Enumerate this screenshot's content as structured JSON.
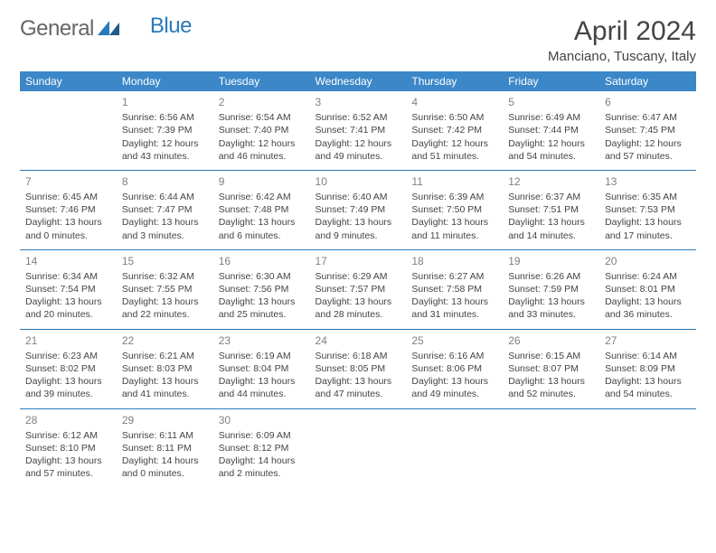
{
  "logo": {
    "text_general": "General",
    "text_blue": "Blue"
  },
  "header": {
    "month": "April 2024",
    "location": "Manciano, Tuscany, Italy"
  },
  "colors": {
    "header_bg": "#3b87c8",
    "header_text": "#ffffff",
    "border": "#2a7ab9",
    "body_text": "#444444",
    "daynum": "#808080",
    "logo_gray": "#666666",
    "logo_blue": "#2a7ab9"
  },
  "weekdays": [
    "Sunday",
    "Monday",
    "Tuesday",
    "Wednesday",
    "Thursday",
    "Friday",
    "Saturday"
  ],
  "weeks": [
    [
      null,
      {
        "n": "1",
        "sr": "6:56 AM",
        "ss": "7:39 PM",
        "dl1": "12 hours",
        "dl2": "and 43 minutes."
      },
      {
        "n": "2",
        "sr": "6:54 AM",
        "ss": "7:40 PM",
        "dl1": "12 hours",
        "dl2": "and 46 minutes."
      },
      {
        "n": "3",
        "sr": "6:52 AM",
        "ss": "7:41 PM",
        "dl1": "12 hours",
        "dl2": "and 49 minutes."
      },
      {
        "n": "4",
        "sr": "6:50 AM",
        "ss": "7:42 PM",
        "dl1": "12 hours",
        "dl2": "and 51 minutes."
      },
      {
        "n": "5",
        "sr": "6:49 AM",
        "ss": "7:44 PM",
        "dl1": "12 hours",
        "dl2": "and 54 minutes."
      },
      {
        "n": "6",
        "sr": "6:47 AM",
        "ss": "7:45 PM",
        "dl1": "12 hours",
        "dl2": "and 57 minutes."
      }
    ],
    [
      {
        "n": "7",
        "sr": "6:45 AM",
        "ss": "7:46 PM",
        "dl1": "13 hours",
        "dl2": "and 0 minutes."
      },
      {
        "n": "8",
        "sr": "6:44 AM",
        "ss": "7:47 PM",
        "dl1": "13 hours",
        "dl2": "and 3 minutes."
      },
      {
        "n": "9",
        "sr": "6:42 AM",
        "ss": "7:48 PM",
        "dl1": "13 hours",
        "dl2": "and 6 minutes."
      },
      {
        "n": "10",
        "sr": "6:40 AM",
        "ss": "7:49 PM",
        "dl1": "13 hours",
        "dl2": "and 9 minutes."
      },
      {
        "n": "11",
        "sr": "6:39 AM",
        "ss": "7:50 PM",
        "dl1": "13 hours",
        "dl2": "and 11 minutes."
      },
      {
        "n": "12",
        "sr": "6:37 AM",
        "ss": "7:51 PM",
        "dl1": "13 hours",
        "dl2": "and 14 minutes."
      },
      {
        "n": "13",
        "sr": "6:35 AM",
        "ss": "7:53 PM",
        "dl1": "13 hours",
        "dl2": "and 17 minutes."
      }
    ],
    [
      {
        "n": "14",
        "sr": "6:34 AM",
        "ss": "7:54 PM",
        "dl1": "13 hours",
        "dl2": "and 20 minutes."
      },
      {
        "n": "15",
        "sr": "6:32 AM",
        "ss": "7:55 PM",
        "dl1": "13 hours",
        "dl2": "and 22 minutes."
      },
      {
        "n": "16",
        "sr": "6:30 AM",
        "ss": "7:56 PM",
        "dl1": "13 hours",
        "dl2": "and 25 minutes."
      },
      {
        "n": "17",
        "sr": "6:29 AM",
        "ss": "7:57 PM",
        "dl1": "13 hours",
        "dl2": "and 28 minutes."
      },
      {
        "n": "18",
        "sr": "6:27 AM",
        "ss": "7:58 PM",
        "dl1": "13 hours",
        "dl2": "and 31 minutes."
      },
      {
        "n": "19",
        "sr": "6:26 AM",
        "ss": "7:59 PM",
        "dl1": "13 hours",
        "dl2": "and 33 minutes."
      },
      {
        "n": "20",
        "sr": "6:24 AM",
        "ss": "8:01 PM",
        "dl1": "13 hours",
        "dl2": "and 36 minutes."
      }
    ],
    [
      {
        "n": "21",
        "sr": "6:23 AM",
        "ss": "8:02 PM",
        "dl1": "13 hours",
        "dl2": "and 39 minutes."
      },
      {
        "n": "22",
        "sr": "6:21 AM",
        "ss": "8:03 PM",
        "dl1": "13 hours",
        "dl2": "and 41 minutes."
      },
      {
        "n": "23",
        "sr": "6:19 AM",
        "ss": "8:04 PM",
        "dl1": "13 hours",
        "dl2": "and 44 minutes."
      },
      {
        "n": "24",
        "sr": "6:18 AM",
        "ss": "8:05 PM",
        "dl1": "13 hours",
        "dl2": "and 47 minutes."
      },
      {
        "n": "25",
        "sr": "6:16 AM",
        "ss": "8:06 PM",
        "dl1": "13 hours",
        "dl2": "and 49 minutes."
      },
      {
        "n": "26",
        "sr": "6:15 AM",
        "ss": "8:07 PM",
        "dl1": "13 hours",
        "dl2": "and 52 minutes."
      },
      {
        "n": "27",
        "sr": "6:14 AM",
        "ss": "8:09 PM",
        "dl1": "13 hours",
        "dl2": "and 54 minutes."
      }
    ],
    [
      {
        "n": "28",
        "sr": "6:12 AM",
        "ss": "8:10 PM",
        "dl1": "13 hours",
        "dl2": "and 57 minutes."
      },
      {
        "n": "29",
        "sr": "6:11 AM",
        "ss": "8:11 PM",
        "dl1": "14 hours",
        "dl2": "and 0 minutes."
      },
      {
        "n": "30",
        "sr": "6:09 AM",
        "ss": "8:12 PM",
        "dl1": "14 hours",
        "dl2": "and 2 minutes."
      },
      null,
      null,
      null,
      null
    ]
  ],
  "labels": {
    "sunrise_prefix": "Sunrise: ",
    "sunset_prefix": "Sunset: ",
    "daylight_prefix": "Daylight: "
  }
}
